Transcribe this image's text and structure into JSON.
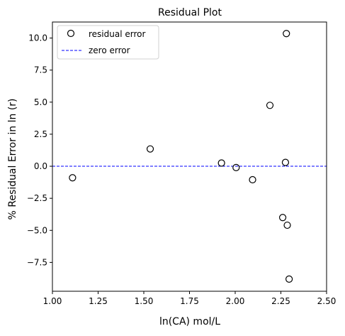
{
  "chart_data": {
    "type": "scatter",
    "title": "Residual Plot",
    "xlabel": "ln(CA) mol/L",
    "ylabel": "% Residual Error in ln (r)",
    "xlim": [
      1.0,
      2.5
    ],
    "ylim": [
      -9.75,
      11.25
    ],
    "x_ticks": [
      1.0,
      1.25,
      1.5,
      1.75,
      2.0,
      2.25,
      2.5
    ],
    "x_tick_labels": [
      "1.00",
      "1.25",
      "1.50",
      "1.75",
      "2.00",
      "2.25",
      "2.50"
    ],
    "y_ticks": [
      -7.5,
      -5.0,
      -2.5,
      0.0,
      2.5,
      5.0,
      7.5,
      10.0
    ],
    "y_tick_labels": [
      "−7.5",
      "−5.0",
      "−2.5",
      "0.0",
      "2.5",
      "5.0",
      "7.5",
      "10.0"
    ],
    "grid": false,
    "legend_position": "top-left",
    "series": [
      {
        "name": "residual error",
        "type": "scatter",
        "marker": "open-circle",
        "color": "#000000",
        "points": [
          {
            "x": 1.11,
            "y": -0.9
          },
          {
            "x": 1.535,
            "y": 1.35
          },
          {
            "x": 1.925,
            "y": 0.25
          },
          {
            "x": 2.005,
            "y": -0.1
          },
          {
            "x": 2.095,
            "y": -1.05
          },
          {
            "x": 2.19,
            "y": 4.75
          },
          {
            "x": 2.26,
            "y": -4.0
          },
          {
            "x": 2.275,
            "y": 0.3
          },
          {
            "x": 2.28,
            "y": 10.35
          },
          {
            "x": 2.285,
            "y": -4.6
          },
          {
            "x": 2.295,
            "y": -8.8
          }
        ]
      },
      {
        "name": "zero error",
        "type": "hline",
        "y": 0,
        "style": "dashed",
        "color": "#0000ff"
      }
    ]
  }
}
